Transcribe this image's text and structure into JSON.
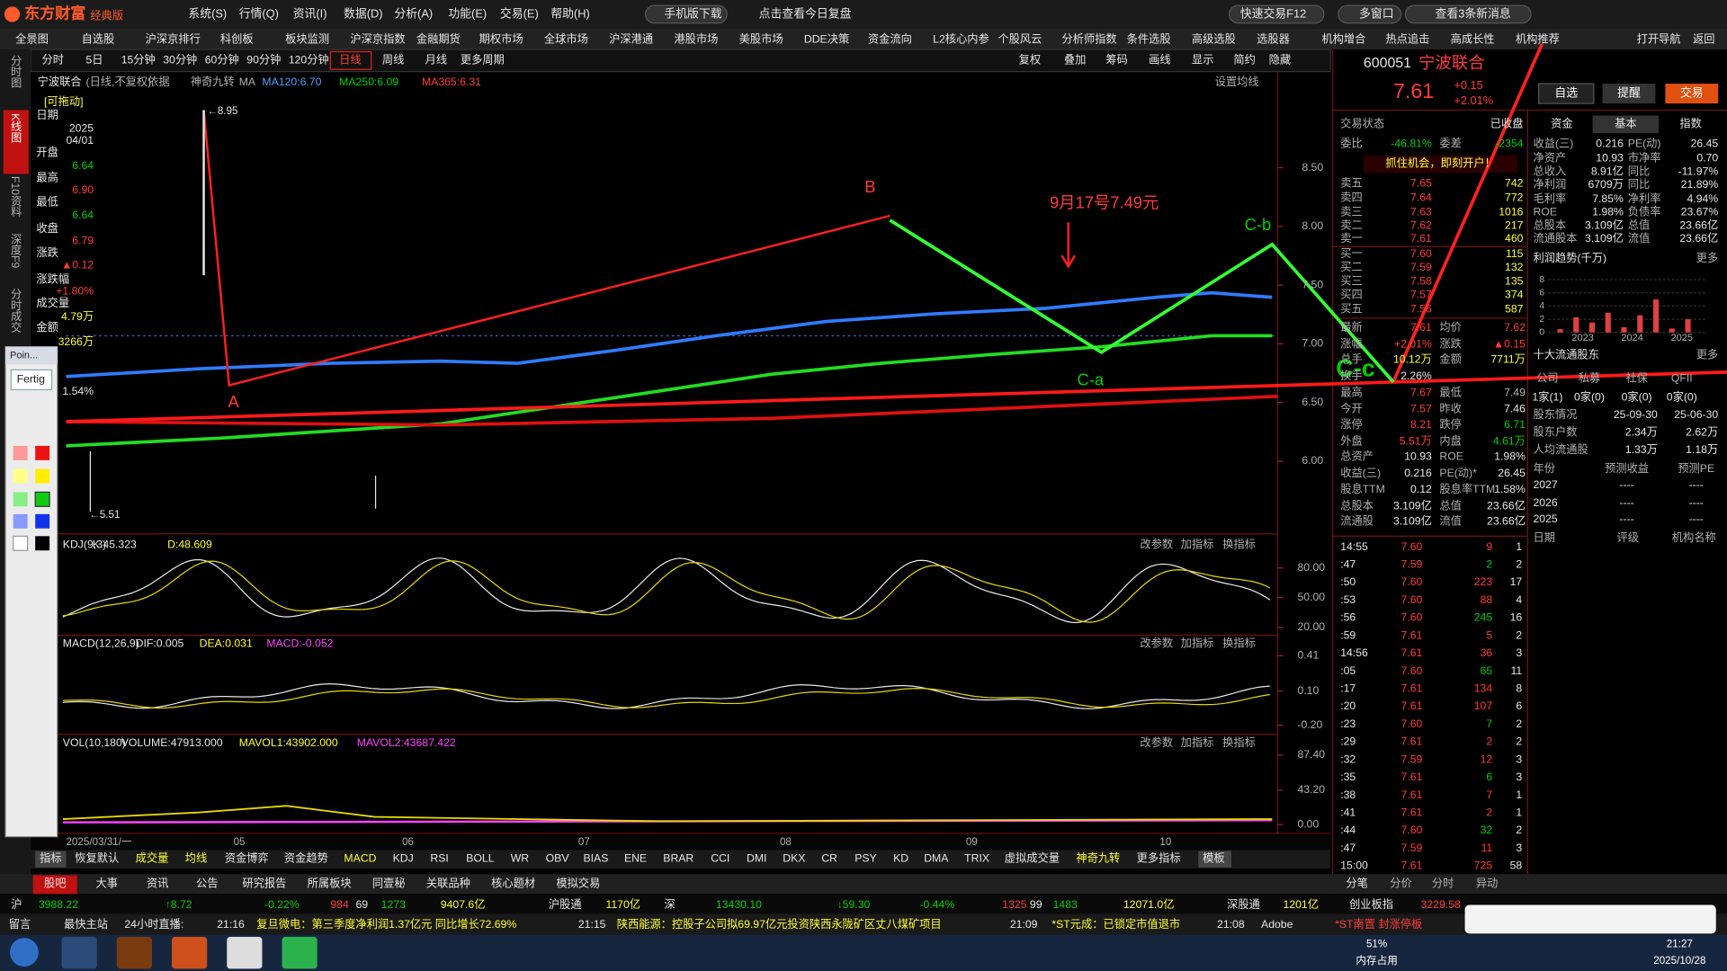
{
  "title_bar": {
    "logo": "东方财富",
    "edition": "经典版",
    "menu": [
      "系统(S)",
      "行情(Q)",
      "资讯(I)",
      "数据(D)",
      "分析(A)",
      "功能(E)",
      "交易(E)",
      "帮助(H)"
    ],
    "buttons": [
      "手机版下载",
      "点击查看今日复盘",
      "快速交易F12",
      "多窗口",
      "查看3条新消息"
    ]
  },
  "nav": [
    "全景图",
    "自选股",
    "沪深京排行",
    "科创板",
    "板块监测",
    "沪深京指数",
    "金融期货",
    "期权市场",
    "全球市场",
    "沪深港通",
    "港股市场",
    "美股市场",
    "DDE决策",
    "资金流向",
    "L2核心内参",
    "个股风云",
    "分析师指数",
    "条件选股",
    "高级选股",
    "选股器",
    "机构增合",
    "热点追击",
    "高成长性",
    "机构推荐",
    "打开导航",
    "返回"
  ],
  "periods": [
    "分时",
    "5日",
    "15分钟",
    "30分钟",
    "60分钟",
    "90分钟",
    "120分钟",
    "日线",
    "周线",
    "月线",
    "更多周期"
  ],
  "tools": [
    "复权",
    "叠加",
    "筹码",
    "画线",
    "显示",
    "简约",
    "隐藏"
  ],
  "side_tabs": [
    "分时图",
    "K线图",
    "F10资料",
    "深度F9",
    "分时成交"
  ],
  "chart": {
    "stock": "宁波联合",
    "mode": "(日线,不复权)",
    "basis": "依据",
    "signal": "神奇九转",
    "ma": "MA",
    "ma120": "MA120:6.70",
    "ma250": "MA250:6.09",
    "ma365": "MA365:6.31",
    "setting": "设置均线",
    "yaxis": {
      "lim": [
        5.38,
        9.31
      ],
      "ticks": [
        {
          "value": 8.5,
          "label": "8.50"
        },
        {
          "value": 8,
          "label": "8.00"
        },
        {
          "value": 7.5,
          "label": "7.50"
        },
        {
          "value": 7,
          "label": "7.00"
        },
        {
          "value": 6.5,
          "label": "6.50"
        },
        {
          "value": 6,
          "label": "6.00"
        }
      ]
    },
    "annotations": [
      "←8.95",
      "←5.51",
      "A",
      "B",
      "C-a",
      "C-b",
      "9月17号7.49元",
      "C-c"
    ],
    "xlabels": [
      "2025/03/31/一",
      "05",
      "06",
      "07",
      "08",
      "09",
      "10"
    ]
  },
  "info_box": {
    "drag": "[可拖动]",
    "lines": [
      "日期",
      "2025",
      "04/01",
      "开盘",
      "6.64",
      "最高",
      "6.90",
      "最低",
      "6.64",
      "收盘",
      "6.79",
      "涨跌",
      "▲0.12",
      "涨跌幅",
      "+1.80%",
      "成交量",
      "4.79万",
      "金额",
      "3266万",
      "1.54%"
    ]
  },
  "panes": [
    {
      "labels": [
        "KDJ(9,3)",
        "K:45.323",
        "D:48.609"
      ],
      "lim": [
        12,
        111
      ],
      "ticks": [
        {
          "value": 80,
          "label": "80.00"
        },
        {
          "value": 50,
          "label": "50.00"
        },
        {
          "value": 20,
          "label": "20.00"
        }
      ]
    },
    {
      "labels": [
        "MACD(12,26,9)",
        "DIF:0.005",
        "DEA:0.031",
        "MACD:-0.052"
      ],
      "lim": [
        -0.28,
        0.58
      ],
      "ticks": [
        0.41,
        {
          "value": 0.1,
          "label": "0.10"
        },
        {
          "value": -0.2,
          "label": "-0.20"
        }
      ]
    },
    {
      "labels": [
        "VOL(10,180)",
        "VOLUME:47913.000",
        "MAVOL1:43902.000",
        "MAVOL2:43687.422"
      ],
      "lim": [
        -11,
        112
      ],
      "ticks": [
        {
          "value": 87.4,
          "label": "87.40"
        },
        {
          "value": 43.2,
          "label": "43.20"
        },
        {
          "value": 0,
          "label": "0.00"
        }
      ]
    }
  ],
  "pane_buttons": [
    "改参数",
    "加指标",
    "换指标"
  ],
  "indicator_tabs": [
    "指标",
    "恢复默认",
    "成交量",
    "均线",
    "资金博弈",
    "资金趋势",
    "MACD",
    "KDJ",
    "RSI",
    "BOLL",
    "WR",
    "OBV",
    "BIAS",
    "ENE",
    "BRAR",
    "CCI",
    "DMI",
    "DKX",
    "CR",
    "PSY",
    "KD",
    "DMA",
    "TRIX",
    "虚拟成交量",
    "神奇九转",
    "更多指标",
    "模板"
  ],
  "bottom_tabs": [
    "股吧",
    "大事",
    "资讯",
    "公告",
    "研究报告",
    "所属板块",
    "同壹秘",
    "关联品种",
    "核心题材",
    "模拟交易"
  ],
  "index_bar": [
    "沪",
    "3988.22",
    "↑8.72",
    "-0.22%",
    "984",
    "69",
    "1273",
    "9407.6亿",
    "沪股通",
    "1170亿",
    "深",
    "13430.10",
    "↓59.30",
    "-0.44%",
    "1325",
    "99",
    "1483",
    "12071.0亿",
    "深股通",
    "1201亿",
    "创业板指",
    "3229.58"
  ],
  "news": [
    "留言",
    "最快主站",
    "24小时直播:",
    "21:16",
    "复旦微电：第三季度净利润1.37亿元 同比增长72.69%",
    "21:15",
    "陕西能源：控股子公司拟69.97亿元投资陕西永陇矿区丈八煤矿项目",
    "21:09",
    "*ST元成：已锁定市值退市",
    "21:08",
    "Adobe",
    "*ST南置 封涨停板"
  ],
  "taskbar": [
    "51%",
    "内存占用",
    "21:27",
    "2025/10/28"
  ],
  "draw_panel": [
    "Poin...",
    "Fertig"
  ],
  "quote": {
    "code": "600051",
    "name": "宁波联合",
    "price": "7.61",
    "change": "+0.15",
    "pct": "+2.01%",
    "buttons": [
      "自选",
      "提醒",
      "交易"
    ],
    "status_label": "交易状态",
    "status": "已收盘",
    "wb_label": "委比",
    "wb": "-46.81%",
    "wc_label": "委差",
    "wc": "-2354",
    "promo": "抓住机会，即刻开户！",
    "sell": [
      [
        "卖五",
        "7.65",
        "742"
      ],
      [
        "卖四",
        "7.64",
        "772"
      ],
      [
        "卖三",
        "7.63",
        "1016"
      ],
      [
        "卖二",
        "7.62",
        "217"
      ],
      [
        "卖一",
        "7.61",
        "460"
      ]
    ],
    "buy": [
      [
        "买一",
        "7.60",
        "115"
      ],
      [
        "买二",
        "7.59",
        "132"
      ],
      [
        "买三",
        "7.58",
        "135"
      ],
      [
        "买四",
        "7.57",
        "374"
      ],
      [
        "买五",
        "7.56",
        "587"
      ]
    ],
    "stats": [
      [
        "最新",
        "7.61",
        "均价",
        "7.62"
      ],
      [
        "涨幅",
        "+2.01%",
        "涨跌",
        "▲0.15"
      ],
      [
        "总手",
        "10.12万",
        "金额",
        "7711万"
      ],
      [
        "换手",
        "2.26%",
        "",
        ""
      ],
      [
        "最高",
        "7.67",
        "最低",
        "7.49"
      ],
      [
        "今开",
        "7.57",
        "昨收",
        "7.46"
      ],
      [
        "涨停",
        "8.21",
        "跌停",
        "6.71"
      ],
      [
        "外盘",
        "5.51万",
        "内盘",
        "4.61万"
      ],
      [
        "总资产",
        "10.93",
        "ROE",
        "1.98%"
      ],
      [
        "收益(三)",
        "0.216",
        "PE(动)*",
        "26.45"
      ],
      [
        "股息TTM",
        "0.12",
        "股息率TTM",
        "1.58%"
      ],
      [
        "总股本",
        "3.109亿",
        "总值",
        "23.66亿"
      ],
      [
        "流通股",
        "3.109亿",
        "流值",
        "23.66亿"
      ]
    ]
  },
  "trades": {
    "rows": [
      [
        "14:55",
        "7.60",
        "9",
        "1"
      ],
      [
        ":47",
        "7.59",
        "2",
        "2"
      ],
      [
        ":50",
        "7.60",
        "223",
        "17"
      ],
      [
        ":53",
        "7.60",
        "88",
        "4"
      ],
      [
        ":56",
        "7.60",
        "245",
        "16"
      ],
      [
        ":59",
        "7.61",
        "5",
        "2"
      ],
      [
        "14:56",
        "7.61",
        "36",
        "3"
      ],
      [
        ":05",
        "7.60",
        "65",
        "11"
      ],
      [
        ":17",
        "7.61",
        "134",
        "8"
      ],
      [
        ":20",
        "7.61",
        "107",
        "6"
      ],
      [
        ":23",
        "7.60",
        "7",
        "2"
      ],
      [
        ":29",
        "7.61",
        "2",
        "2"
      ],
      [
        ":32",
        "7.59",
        "12",
        "3"
      ],
      [
        ":35",
        "7.61",
        "6",
        "3"
      ],
      [
        ":38",
        "7.61",
        "7",
        "1"
      ],
      [
        ":41",
        "7.61",
        "2",
        "1"
      ],
      [
        ":44",
        "7.60",
        "32",
        "2"
      ],
      [
        ":47",
        "7.59",
        "11",
        "3"
      ],
      [
        "15:00",
        "7.61",
        "725",
        "58"
      ]
    ],
    "tabs": [
      "分笔",
      "分价",
      "分时",
      "异动"
    ]
  },
  "fund": {
    "tabs": [
      "资金",
      "基本",
      "指数"
    ],
    "rows": [
      [
        "收益(三)",
        "0.216",
        "PE(动)",
        "26.45"
      ],
      [
        "净资产",
        "10.93",
        "市净率",
        "0.70"
      ],
      [
        "总收入",
        "8.91亿",
        "同比",
        "-11.97%"
      ],
      [
        "净利润",
        "6709万",
        "同比",
        "21.89%"
      ],
      [
        "毛利率",
        "7.85%",
        "净利率",
        "4.94%"
      ],
      [
        "ROE",
        "1.98%",
        "负债率",
        "23.67%"
      ],
      [
        "总股本",
        "3.109亿",
        "总值",
        "23.66亿"
      ],
      [
        "流通股本",
        "3.109亿",
        "流值",
        "23.66亿"
      ]
    ],
    "profit": {
      "title": "利润趋势(千万)",
      "more": "更多",
      "ylim": [
        0,
        9
      ],
      "yticks": [
        8,
        6,
        4,
        2,
        0
      ],
      "years": [
        "2023",
        "2024",
        "2025"
      ],
      "values": [
        0.5,
        2.3,
        1.5,
        3.0,
        0.8,
        2.6,
        5.0,
        0.6,
        2.0
      ]
    },
    "holders": {
      "title": "十大流通股东",
      "more": "更多",
      "head": [
        "公司",
        "私募",
        "社保",
        "QFII"
      ],
      "counts": [
        "1家(1)",
        "0家(0)",
        "0家(0)",
        "0家(0)"
      ],
      "rows": [
        [
          "股东情况",
          "25-09-30",
          "25-06-30"
        ],
        [
          "股东户数",
          "2.34万",
          "2.62万"
        ],
        [
          "人均流通股",
          "1.33万",
          "1.18万"
        ]
      ]
    },
    "forecast": {
      "head": [
        "年份",
        "预测收益",
        "预测PE"
      ],
      "rows": [
        [
          "2027",
          "----",
          "----"
        ],
        [
          "2026",
          "----",
          "----"
        ],
        [
          "2025",
          "----",
          "----"
        ]
      ]
    },
    "ratings_head": [
      "日期",
      "评级",
      "机构名称"
    ]
  }
}
